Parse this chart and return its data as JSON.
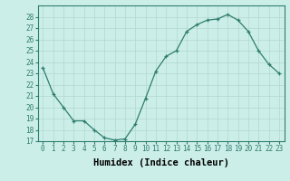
{
  "x": [
    0,
    1,
    2,
    3,
    4,
    5,
    6,
    7,
    8,
    9,
    10,
    11,
    12,
    13,
    14,
    15,
    16,
    17,
    18,
    19,
    20,
    21,
    22,
    23
  ],
  "y": [
    23.5,
    21.2,
    20.0,
    18.8,
    18.8,
    18.0,
    17.3,
    17.1,
    17.2,
    18.5,
    20.8,
    23.2,
    24.5,
    25.0,
    26.7,
    27.3,
    27.7,
    27.8,
    28.2,
    27.7,
    26.7,
    25.0,
    23.8,
    23.0
  ],
  "xlabel": "Humidex (Indice chaleur)",
  "line_color": "#2e7d6e",
  "marker": "+",
  "bg_color": "#cceee8",
  "grid_color": "#b0d8d0",
  "ylim": [
    17,
    29
  ],
  "yticks": [
    17,
    18,
    19,
    20,
    21,
    22,
    23,
    24,
    25,
    26,
    27,
    28
  ],
  "xticks": [
    0,
    1,
    2,
    3,
    4,
    5,
    6,
    7,
    8,
    9,
    10,
    11,
    12,
    13,
    14,
    15,
    16,
    17,
    18,
    19,
    20,
    21,
    22,
    23
  ],
  "tick_label_fontsize": 5.5,
  "xlabel_fontsize": 7.5
}
